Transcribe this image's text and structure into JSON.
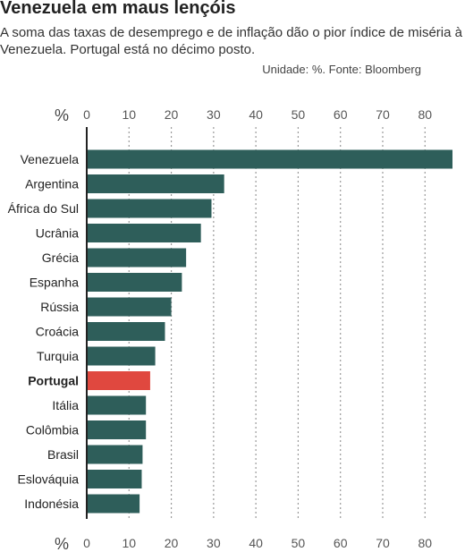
{
  "header": {
    "title": "Venezuela em maus lençóis",
    "subtitle": "A soma das taxas de desemprego e de inflação dão o pior índice de miséria à Venezuela. Portugal está no décimo posto.",
    "source": "Unidade: %. Fonte: Bloomberg"
  },
  "colors": {
    "bar": "#2e5e5a",
    "highlight": "#e0483f",
    "grid": "#9a9a9a",
    "axis": "#222222"
  },
  "chart_data": {
    "type": "bar",
    "orientation": "horizontal",
    "unit_label": "%",
    "categories": [
      "Venezuela",
      "Argentina",
      "África do Sul",
      "Ucrânia",
      "Grécia",
      "Espanha",
      "Rússia",
      "Croácia",
      "Turquia",
      "Portugal",
      "Itália",
      "Colômbia",
      "Brasil",
      "Eslováquia",
      "Indonésia"
    ],
    "values": [
      86.5,
      32.5,
      29.5,
      27,
      23.5,
      22.5,
      20,
      18.5,
      16.2,
      15,
      14,
      14,
      13.2,
      13,
      12.5
    ],
    "highlight": "Portugal",
    "xlim": [
      0,
      86.5
    ],
    "xticks": [
      0,
      10,
      20,
      30,
      40,
      50,
      60,
      70,
      80
    ],
    "grid": "vertical-dotted",
    "axis_labels": "top-and-bottom"
  }
}
